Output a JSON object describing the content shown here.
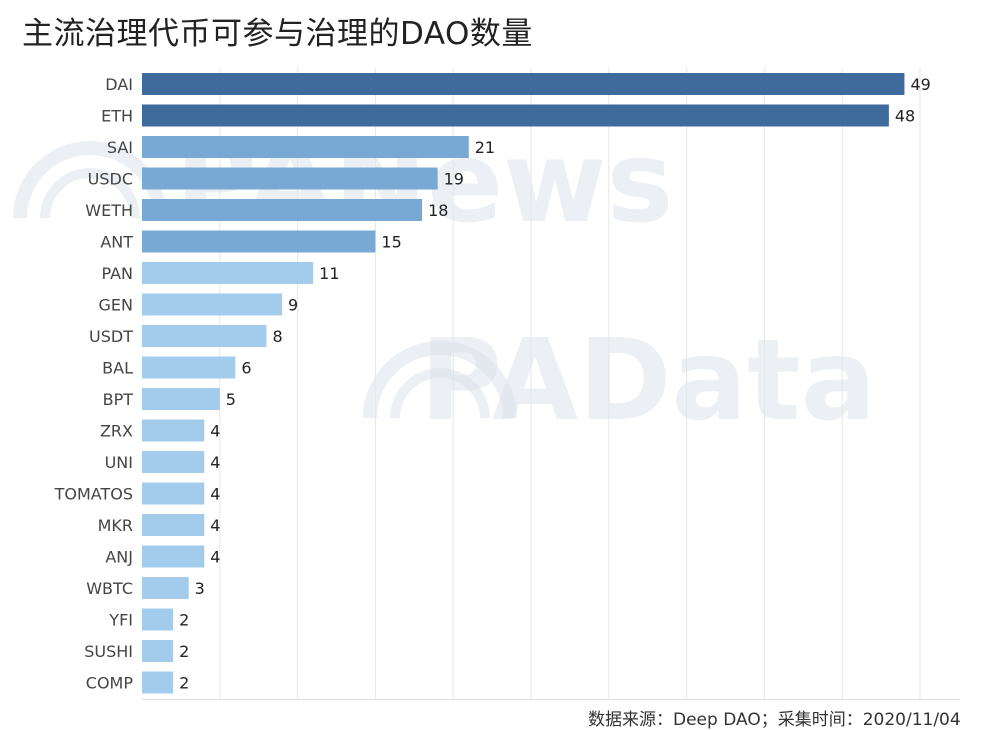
{
  "title": "主流治理代币可参与治理的DAO数量",
  "watermarks": [
    "PANews",
    "PAData"
  ],
  "source_note": "数据来源：Deep DAO；采集时间：2020/11/04",
  "colors": {
    "bar_dark": "#3e6a9c",
    "bar_mid": "#78a8d4",
    "bar_light": "#a3ccec",
    "gridline": "#e6e6e6"
  },
  "chart_data": {
    "type": "bar",
    "orientation": "horizontal",
    "title": "主流治理代币可参与治理的DAO数量",
    "xlabel": "",
    "ylabel": "",
    "xlim": [
      0,
      50
    ],
    "grid": true,
    "categories": [
      "DAI",
      "ETH",
      "SAI",
      "USDC",
      "WETH",
      "ANT",
      "PAN",
      "GEN",
      "USDT",
      "BAL",
      "BPT",
      "ZRX",
      "UNI",
      "TOMATOS",
      "MKR",
      "ANJ",
      "WBTC",
      "YFI",
      "SUSHI",
      "COMP"
    ],
    "values": [
      49,
      48,
      21,
      19,
      18,
      15,
      11,
      9,
      8,
      6,
      5,
      4,
      4,
      4,
      4,
      4,
      3,
      2,
      2,
      2
    ],
    "data_labels": [
      "49",
      "48",
      "21",
      "19",
      "18",
      "15",
      "11",
      "9",
      "8",
      "6",
      "5",
      "4",
      "4",
      "4",
      "4",
      "4",
      "3",
      "2",
      "2",
      "2"
    ]
  }
}
